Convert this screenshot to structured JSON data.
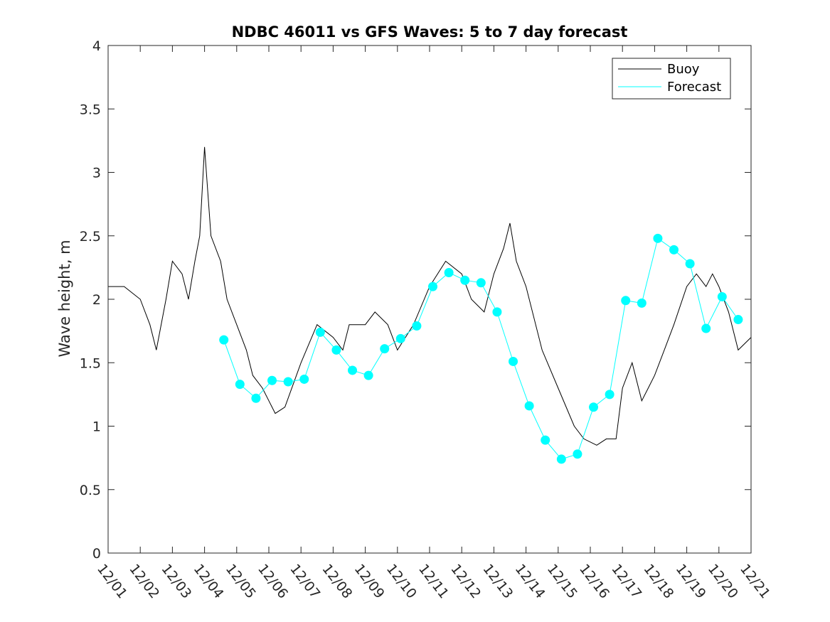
{
  "chart_data": {
    "type": "line",
    "title": "NDBC 46011 vs GFS Waves: 5 to 7 day forecast",
    "xlabel": "",
    "ylabel": "Wave height, m",
    "xlim": [
      0,
      20
    ],
    "ylim": [
      0,
      4
    ],
    "yticks": [
      0,
      0.5,
      1,
      1.5,
      2,
      2.5,
      3,
      3.5,
      4
    ],
    "ytick_labels": [
      "0",
      "0.5",
      "1",
      "1.5",
      "2",
      "2.5",
      "3",
      "3.5",
      "4"
    ],
    "xticks": [
      0,
      1,
      2,
      3,
      4,
      5,
      6,
      7,
      8,
      9,
      10,
      11,
      12,
      13,
      14,
      15,
      16,
      17,
      18,
      19,
      20
    ],
    "xtick_labels": [
      "12/01",
      "12/02",
      "12/03",
      "12/04",
      "12/05",
      "12/06",
      "12/07",
      "12/08",
      "12/09",
      "12/10",
      "12/11",
      "12/12",
      "12/13",
      "12/14",
      "12/15",
      "12/16",
      "12/17",
      "12/18",
      "12/19",
      "12/20",
      "12/21"
    ],
    "legend": {
      "position": "top-right",
      "entries": [
        "Buoy",
        "Forecast"
      ]
    },
    "colors": {
      "buoy": "#000000",
      "forecast": "#00ffff",
      "axis": "#262626"
    },
    "series": [
      {
        "name": "Buoy",
        "x": [
          0,
          0.5,
          1,
          1.3,
          1.5,
          1.8,
          2,
          2.3,
          2.5,
          2.7,
          2.85,
          3,
          3.2,
          3.5,
          3.7,
          4,
          4.3,
          4.5,
          4.8,
          5,
          5.2,
          5.5,
          6,
          6.5,
          7,
          7.3,
          7.5,
          8,
          8.3,
          8.7,
          9,
          9.5,
          10,
          10.5,
          11,
          11.3,
          11.7,
          12,
          12.3,
          12.5,
          12.7,
          13,
          13.5,
          14,
          14.5,
          14.8,
          15.2,
          15.5,
          15.8,
          16,
          16.3,
          16.6,
          16.8,
          17,
          17.3,
          17.6,
          18,
          18.3,
          18.6,
          18.8,
          19,
          19.3,
          19.6,
          20
        ],
        "y": [
          2.1,
          2.1,
          2.0,
          1.8,
          1.6,
          2.0,
          2.3,
          2.2,
          2.0,
          2.3,
          2.5,
          3.2,
          2.5,
          2.3,
          2.0,
          1.8,
          1.6,
          1.4,
          1.3,
          1.2,
          1.1,
          1.15,
          1.5,
          1.8,
          1.7,
          1.6,
          1.8,
          1.8,
          1.9,
          1.8,
          1.6,
          1.8,
          2.1,
          2.3,
          2.2,
          2.0,
          1.9,
          2.2,
          2.4,
          2.6,
          2.3,
          2.1,
          1.6,
          1.3,
          1.0,
          0.9,
          0.85,
          0.9,
          0.9,
          1.3,
          1.5,
          1.2,
          1.3,
          1.4,
          1.6,
          1.8,
          2.1,
          2.2,
          2.1,
          2.2,
          2.1,
          1.9,
          1.6,
          1.7
        ]
      },
      {
        "name": "Forecast",
        "x": [
          3.6,
          4.1,
          4.6,
          5.1,
          5.6,
          6.1,
          6.6,
          7.1,
          7.6,
          8.1,
          8.6,
          9.1,
          9.6,
          10.1,
          10.6,
          11.1,
          11.6,
          12.1,
          12.6,
          13.1,
          13.6,
          14.1,
          14.6,
          15.1,
          15.6,
          16.1,
          16.6,
          17.1,
          17.6,
          18.1,
          18.6,
          19.1,
          19.6
        ],
        "y": [
          1.68,
          1.33,
          1.22,
          1.36,
          1.35,
          1.37,
          1.74,
          1.6,
          1.44,
          1.4,
          1.61,
          1.69,
          1.79,
          2.1,
          2.21,
          2.15,
          2.13,
          1.9,
          1.51,
          1.16,
          0.89,
          0.74,
          0.78,
          1.15,
          1.25,
          1.99,
          1.97,
          2.48,
          2.39,
          2.28,
          1.77,
          2.02,
          1.84
        ]
      }
    ]
  }
}
